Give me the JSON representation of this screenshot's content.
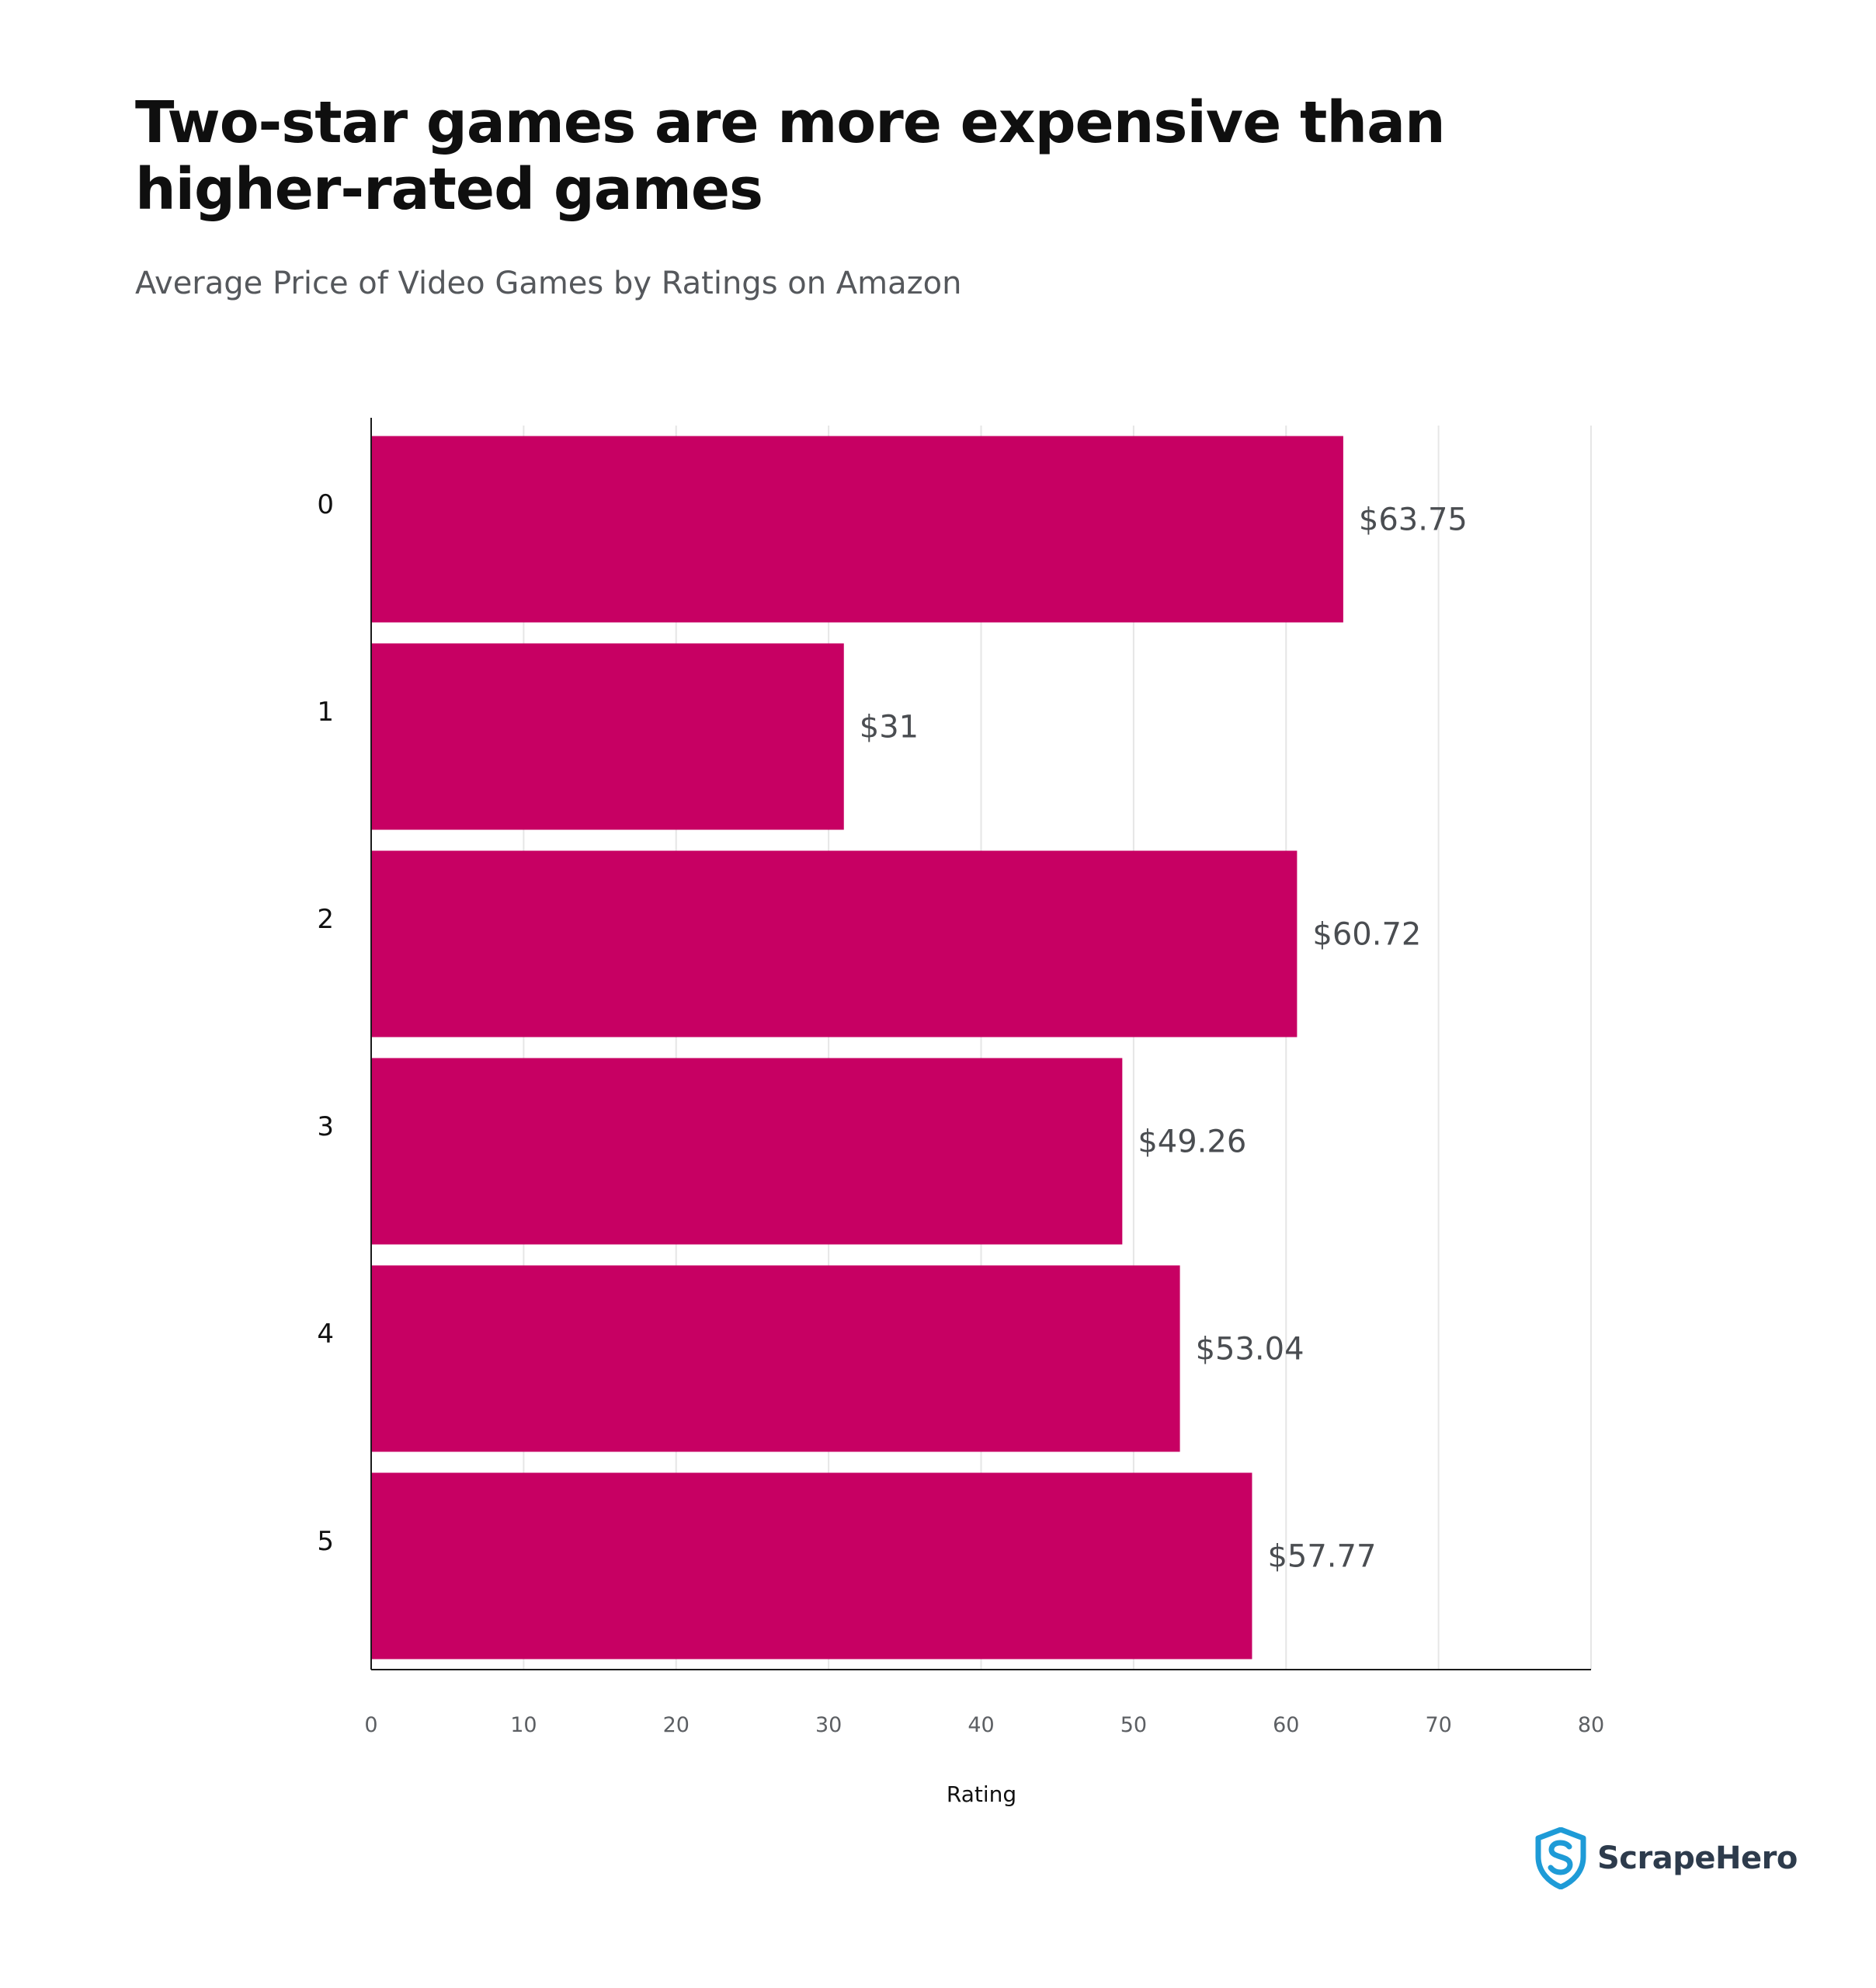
{
  "chart_data": {
    "type": "bar",
    "orientation": "horizontal",
    "title": "Two-star games are more expensive than higher-rated games",
    "subtitle": "Average Price of Video Games by Ratings on Amazon",
    "xlabel": "Rating",
    "ylabel": "",
    "categories": [
      "0",
      "1",
      "2",
      "3",
      "4",
      "5"
    ],
    "values": [
      63.75,
      31,
      60.72,
      49.26,
      53.04,
      57.77
    ],
    "value_labels": [
      "$63.75",
      "$31",
      "$60.72",
      "$49.26",
      "$53.04",
      "$57.77"
    ],
    "xlim": [
      0,
      80
    ],
    "xticks": [
      0,
      10,
      20,
      30,
      40,
      50,
      60,
      70,
      80
    ],
    "grid": true,
    "bar_color": "#c70063",
    "grid_color": "#e6e6e6",
    "axis_color": "#1a1a1a"
  },
  "brand": {
    "name": "ScrapeHero",
    "icon": "shield-s-logo-icon",
    "color": "#1e9bd7"
  }
}
